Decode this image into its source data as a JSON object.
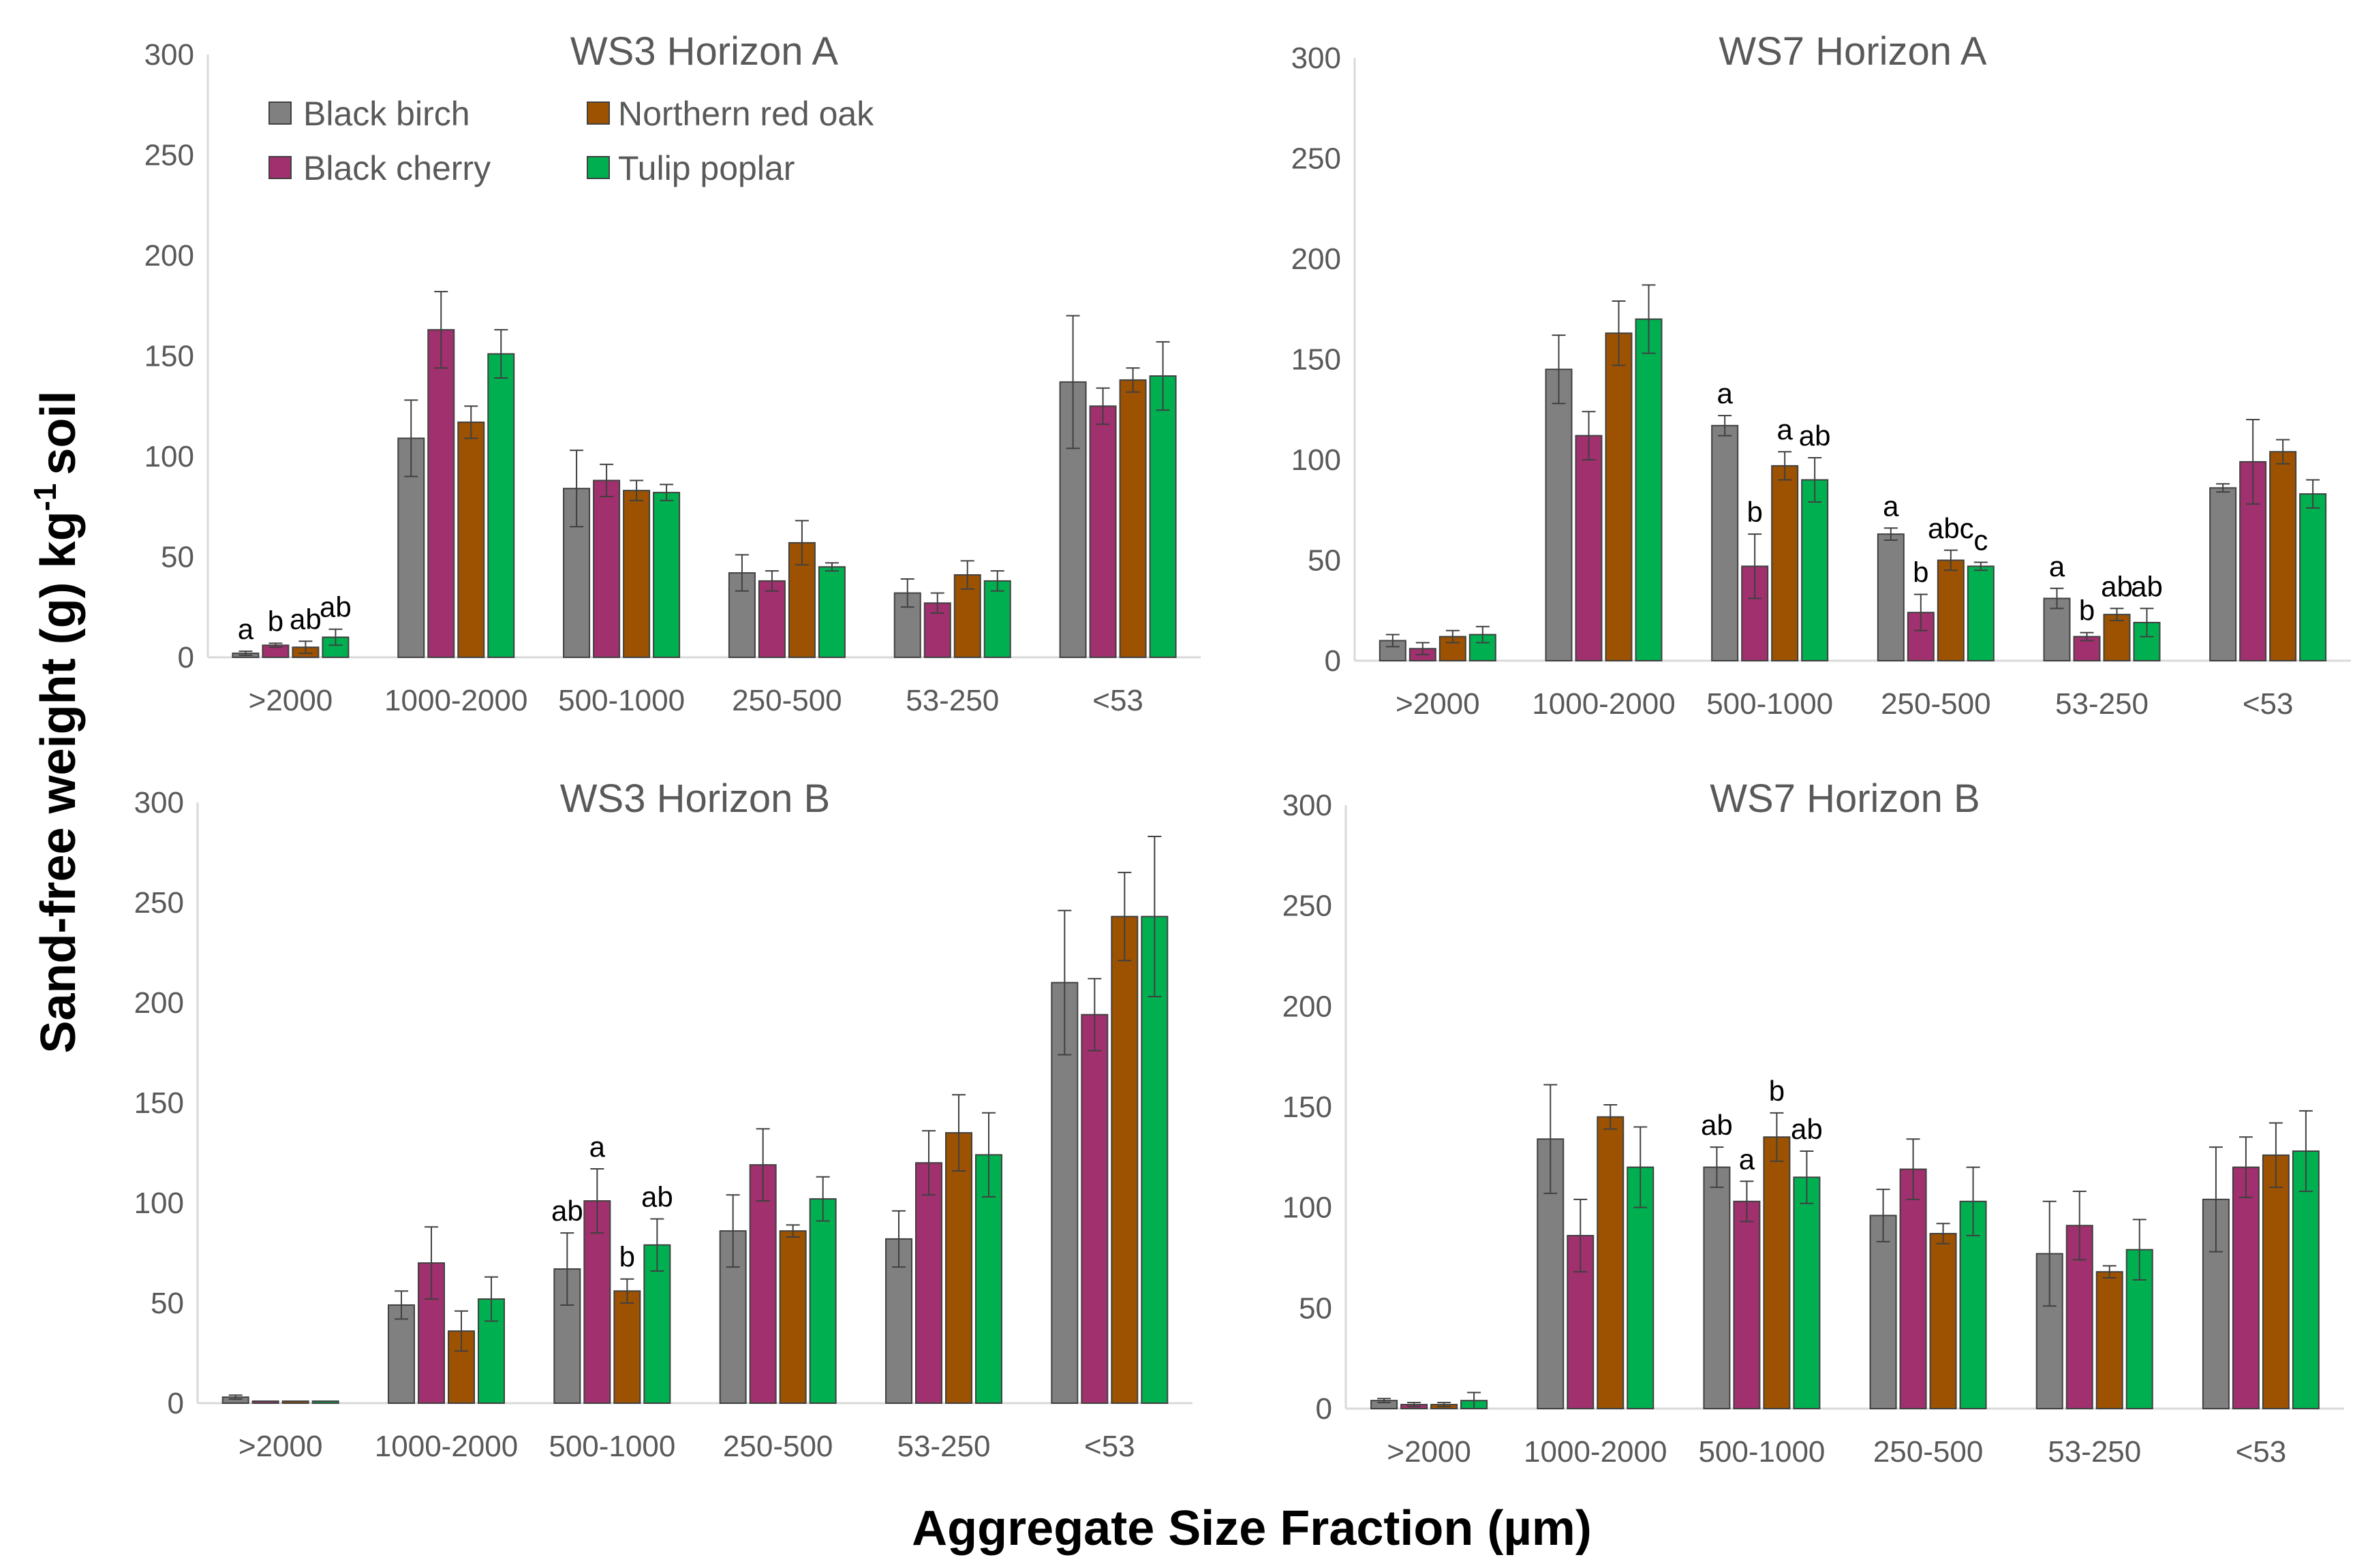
{
  "figure": {
    "y_axis_title": "Sand-free weight (g) kg",
    "y_axis_title_superscript": "-1",
    "y_axis_title_suffix": "soil",
    "x_axis_title": "Aggregate Size Fraction (µm)"
  },
  "legend": [
    {
      "label": "Black birch",
      "color": "#808080"
    },
    {
      "label": "Northern red oak",
      "color": "#9C5200"
    },
    {
      "label": "Black cherry",
      "color": "#A0306E"
    },
    {
      "label": "Tulip poplar",
      "color": "#00B050"
    }
  ],
  "colors": {
    "Black birch": "#808080",
    "Black cherry": "#A0306E",
    "Northern red oak": "#9C5200",
    "Tulip poplar": "#00B050",
    "axis": "#d9d9d9",
    "tick_text": "#595959"
  },
  "chart_data": [
    {
      "type": "bar",
      "title": "WS3 Horizon A",
      "categories": [
        ">2000",
        "1000-2000",
        "500-1000",
        "250-500",
        "53-250",
        "<53"
      ],
      "ylim": [
        0,
        300
      ],
      "yticks": [
        0,
        50,
        100,
        150,
        200,
        250,
        300
      ],
      "series": [
        {
          "name": "Black birch",
          "values": [
            2,
            109,
            84,
            42,
            32,
            137
          ],
          "errors": [
            1,
            19,
            19,
            9,
            7,
            33
          ],
          "labels": [
            "a",
            "",
            "",
            "",
            "",
            ""
          ]
        },
        {
          "name": "Black cherry",
          "values": [
            6,
            163,
            88,
            38,
            27,
            125
          ],
          "errors": [
            1,
            19,
            8,
            5,
            5,
            9
          ],
          "labels": [
            "b",
            "",
            "",
            "",
            "",
            ""
          ]
        },
        {
          "name": "Northern red oak",
          "values": [
            5,
            117,
            83,
            57,
            41,
            138
          ],
          "errors": [
            3,
            8,
            5,
            11,
            7,
            6
          ],
          "labels": [
            "ab",
            "",
            "",
            "",
            "",
            ""
          ]
        },
        {
          "name": "Tulip poplar",
          "values": [
            10,
            151,
            82,
            45,
            38,
            140
          ],
          "errors": [
            4,
            12,
            4,
            2,
            5,
            17
          ],
          "labels": [
            "ab",
            "",
            "",
            "",
            "",
            ""
          ]
        }
      ]
    },
    {
      "type": "bar",
      "title": "WS7 Horizon A",
      "categories": [
        ">2000",
        "1000-2000",
        "500-1000",
        "250-500",
        "53-250",
        "<53"
      ],
      "ylim": [
        0,
        300
      ],
      "yticks": [
        0,
        50,
        100,
        150,
        200,
        250,
        300
      ],
      "series": [
        {
          "name": "Black birch",
          "values": [
            10,
            145,
            117,
            63,
            31,
            86
          ],
          "errors": [
            3,
            17,
            5,
            3,
            5,
            2
          ],
          "labels": [
            "",
            "",
            "a",
            "a",
            "a",
            ""
          ]
        },
        {
          "name": "Black cherry",
          "values": [
            6,
            112,
            47,
            24,
            12,
            99
          ],
          "errors": [
            3,
            12,
            16,
            9,
            2,
            21
          ],
          "labels": [
            "",
            "",
            "b",
            "b",
            "b",
            ""
          ]
        },
        {
          "name": "Northern red oak",
          "values": [
            12,
            163,
            97,
            50,
            23,
            104
          ],
          "errors": [
            3,
            16,
            7,
            5,
            3,
            6
          ],
          "labels": [
            "",
            "",
            "a",
            "abc",
            "ab",
            ""
          ]
        },
        {
          "name": "Tulip poplar",
          "values": [
            13,
            170,
            90,
            47,
            19,
            83
          ],
          "errors": [
            4,
            17,
            11,
            2,
            7,
            7
          ],
          "labels": [
            "",
            "",
            "ab",
            "c",
            "ab",
            ""
          ]
        }
      ]
    },
    {
      "type": "bar",
      "title": "WS3 Horizon B",
      "categories": [
        ">2000",
        "1000-2000",
        "500-1000",
        "250-500",
        "53-250",
        "<53"
      ],
      "ylim": [
        0,
        300
      ],
      "yticks": [
        0,
        50,
        100,
        150,
        200,
        250,
        300
      ],
      "series": [
        {
          "name": "Black birch",
          "values": [
            3,
            49,
            67,
            86,
            82,
            210
          ],
          "errors": [
            1,
            7,
            18,
            18,
            14,
            36
          ],
          "labels": [
            "",
            "",
            "ab",
            "",
            "",
            ""
          ]
        },
        {
          "name": "Black cherry",
          "values": [
            1,
            70,
            101,
            119,
            120,
            194
          ],
          "errors": [
            0,
            18,
            16,
            18,
            16,
            18
          ],
          "labels": [
            "",
            "",
            "a",
            "",
            "",
            ""
          ]
        },
        {
          "name": "Northern red oak",
          "values": [
            1,
            36,
            56,
            86,
            135,
            243
          ],
          "errors": [
            0,
            10,
            6,
            3,
            19,
            22
          ],
          "labels": [
            "",
            "",
            "b",
            "",
            "",
            ""
          ]
        },
        {
          "name": "Tulip poplar",
          "values": [
            1,
            52,
            79,
            102,
            124,
            243
          ],
          "errors": [
            0,
            11,
            13,
            11,
            21,
            40
          ],
          "labels": [
            "",
            "",
            "ab",
            "",
            "",
            ""
          ]
        }
      ]
    },
    {
      "type": "bar",
      "title": "WS7 Horizon B",
      "categories": [
        ">2000",
        "1000-2000",
        "500-1000",
        "250-500",
        "53-250",
        "<53"
      ],
      "ylim": [
        0,
        300
      ],
      "yticks": [
        0,
        50,
        100,
        150,
        200,
        250,
        300
      ],
      "series": [
        {
          "name": "Black birch",
          "values": [
            4,
            134,
            120,
            96,
            77,
            104
          ],
          "errors": [
            1,
            27,
            10,
            13,
            26,
            26
          ],
          "labels": [
            "",
            "",
            "ab",
            "",
            "",
            ""
          ]
        },
        {
          "name": "Black cherry",
          "values": [
            2,
            86,
            103,
            119,
            91,
            120
          ],
          "errors": [
            1,
            18,
            10,
            15,
            17,
            15
          ],
          "labels": [
            "",
            "",
            "a",
            "",
            "",
            ""
          ]
        },
        {
          "name": "Northern red oak",
          "values": [
            2,
            145,
            135,
            87,
            68,
            126
          ],
          "errors": [
            1,
            6,
            12,
            5,
            3,
            16
          ],
          "labels": [
            "",
            "",
            "b",
            "",
            "",
            ""
          ]
        },
        {
          "name": "Tulip poplar",
          "values": [
            4,
            120,
            115,
            103,
            79,
            128
          ],
          "errors": [
            4,
            20,
            13,
            17,
            15,
            20
          ],
          "labels": [
            "",
            "",
            "ab",
            "",
            "",
            ""
          ]
        }
      ]
    }
  ]
}
